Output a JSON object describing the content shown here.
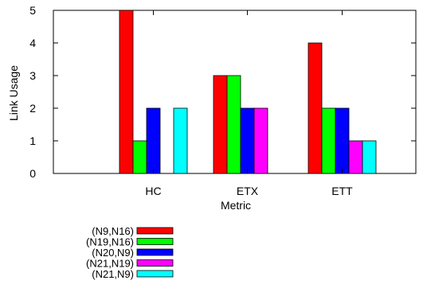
{
  "chart_data": {
    "type": "bar",
    "title": "",
    "xlabel": "Metric",
    "ylabel": "Link Usage",
    "categories": [
      "HC",
      "ETX",
      "ETT"
    ],
    "ylim": [
      0,
      5
    ],
    "yticks": [
      "0",
      "1",
      "2",
      "3",
      "4",
      "5"
    ],
    "legend_position": "bottom-left",
    "series": [
      {
        "name": "(N9,N16)",
        "color": "#ff0000",
        "values": [
          5,
          3,
          4
        ]
      },
      {
        "name": "(N19,N16)",
        "color": "#00ff00",
        "values": [
          1,
          3,
          2
        ]
      },
      {
        "name": "(N20,N9)",
        "color": "#0000ff",
        "values": [
          2,
          2,
          2
        ]
      },
      {
        "name": "(N21,N19)",
        "color": "#ff00ff",
        "values": [
          0,
          2,
          1
        ]
      },
      {
        "name": "(N21,N9)",
        "color": "#00ffff",
        "values": [
          2,
          0,
          1
        ]
      }
    ]
  }
}
